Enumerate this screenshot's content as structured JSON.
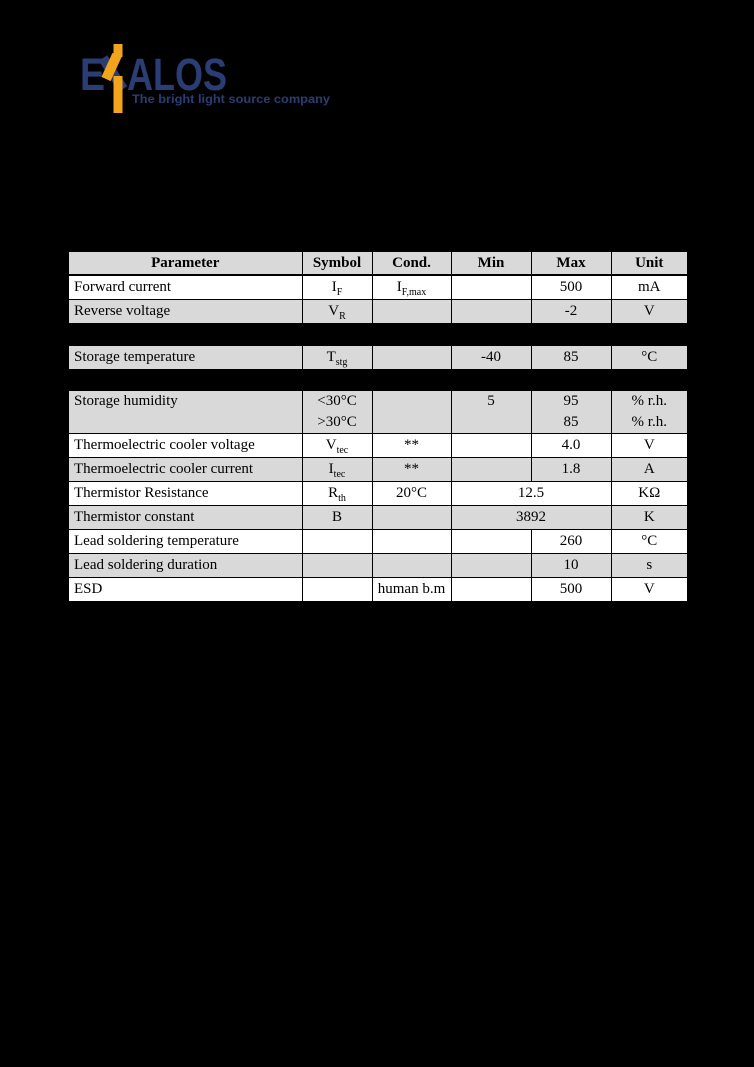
{
  "colors": {
    "navy": "#2b3d75",
    "orange": "#f2a41d",
    "row_gray": "#d9d9d9",
    "row_white": "#ffffff",
    "table_border": "#000000",
    "page_bg": "#000000"
  },
  "logo": {
    "brand": "EXALOS",
    "brand_e": "E",
    "brand_alos": "ALOS",
    "tagline": "The bright light source company"
  },
  "table": {
    "headers": [
      "Parameter",
      "Symbol",
      "Cond.",
      "Min",
      "Max",
      "Unit"
    ],
    "sections": [
      {
        "header": true,
        "rows": [
          {
            "bg": "white",
            "cells": [
              {
                "t": "Forward current"
              },
              {
                "t": "I",
                "sub": "F"
              },
              {
                "t": "I",
                "sub": "F,max"
              },
              {},
              {
                "t": "500"
              },
              {
                "t": "mA"
              }
            ]
          },
          {
            "bg": "gray",
            "cells": [
              {
                "t": "Reverse voltage"
              },
              {
                "t": "V",
                "sub": "R"
              },
              {},
              {},
              {
                "t": "-2"
              },
              {
                "t": "V"
              }
            ]
          }
        ]
      },
      {
        "header": false,
        "rows": [
          {
            "bg": "gray",
            "cells": [
              {
                "t": "Storage temperature"
              },
              {
                "t": "T",
                "sub": "stg"
              },
              {},
              {
                "t": "-40"
              },
              {
                "t": "85"
              },
              {
                "t": "°C"
              }
            ]
          }
        ]
      },
      {
        "header": false,
        "rows": [
          {
            "bg": "gray",
            "tall": true,
            "cells": [
              {
                "t": "Storage humidity"
              },
              {
                "lines": [
                  "<30°C",
                  ">30°C"
                ]
              },
              {},
              {
                "lines": [
                  "5",
                  ""
                ]
              },
              {
                "lines": [
                  "95",
                  "85"
                ]
              },
              {
                "lines": [
                  "% r.h.",
                  "% r.h."
                ]
              }
            ]
          },
          {
            "bg": "white",
            "cells": [
              {
                "t": "Thermoelectric cooler voltage"
              },
              {
                "t": "V",
                "sub": "tec"
              },
              {
                "t": "**"
              },
              {},
              {
                "t": "4.0"
              },
              {
                "t": "V"
              }
            ]
          },
          {
            "bg": "gray",
            "cells": [
              {
                "t": "Thermoelectric cooler current"
              },
              {
                "t": "I",
                "sub": "tec"
              },
              {
                "t": "**"
              },
              {},
              {
                "t": "1.8"
              },
              {
                "t": "A"
              }
            ]
          },
          {
            "bg": "white",
            "cells": [
              {
                "t": "Thermistor Resistance"
              },
              {
                "t": "R",
                "sub": "th"
              },
              {
                "t": "20°C"
              },
              {
                "t": "12.5",
                "colspan": 2
              },
              {
                "t": "KΩ"
              }
            ]
          },
          {
            "bg": "gray",
            "cells": [
              {
                "t": "Thermistor constant"
              },
              {
                "t": "B"
              },
              {},
              {
                "t": "3892",
                "colspan": 2
              },
              {
                "t": "K"
              }
            ]
          },
          {
            "bg": "white",
            "cells": [
              {
                "t": "Lead soldering temperature"
              },
              {},
              {},
              {},
              {
                "t": "260"
              },
              {
                "t": "°C"
              }
            ]
          },
          {
            "bg": "gray",
            "cells": [
              {
                "t": "Lead soldering duration"
              },
              {},
              {},
              {},
              {
                "t": "10"
              },
              {
                "t": "s"
              }
            ]
          },
          {
            "bg": "white",
            "cells": [
              {
                "t": "ESD"
              },
              {},
              {
                "t": "human b.m"
              },
              {},
              {
                "t": "500"
              },
              {
                "t": "V"
              }
            ]
          }
        ]
      }
    ]
  }
}
